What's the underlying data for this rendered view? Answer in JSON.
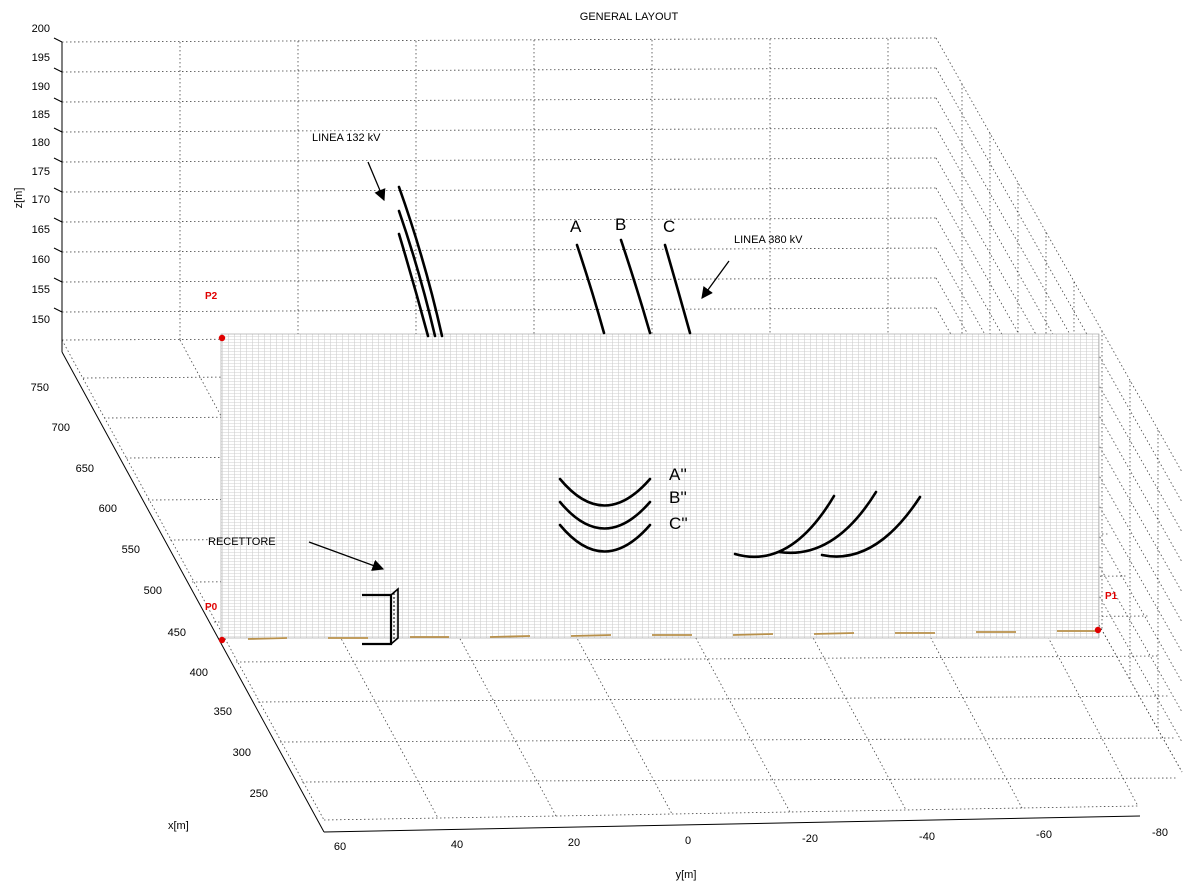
{
  "title": "GENERAL LAYOUT",
  "axes": {
    "z": {
      "label": "z[m]",
      "ticks": [
        "150",
        "155",
        "160",
        "165",
        "170",
        "175",
        "180",
        "185",
        "190",
        "195",
        "200"
      ]
    },
    "x": {
      "label": "x[m]",
      "ticks": [
        "250",
        "300",
        "350",
        "400",
        "450",
        "500",
        "550",
        "600",
        "650",
        "700",
        "750"
      ]
    },
    "y": {
      "label": "y[m]",
      "ticks": [
        "60",
        "40",
        "20",
        "0",
        "-20",
        "-40",
        "-60",
        "-80"
      ]
    }
  },
  "points": {
    "p0": "P0",
    "p1": "P1",
    "p2": "P2"
  },
  "annotations": {
    "line132": "LINEA 132 kV",
    "line380": "LINEA 380 kV",
    "receiver": "RECETTORE"
  },
  "conductors": {
    "a": "A",
    "b": "B",
    "c": "C"
  },
  "projections": {
    "a": "A''",
    "b": "B''",
    "c": "C''"
  },
  "colors": {
    "point": "#e00000",
    "ground_segment": "#b8904a",
    "mesh": "#c8c8c8"
  }
}
